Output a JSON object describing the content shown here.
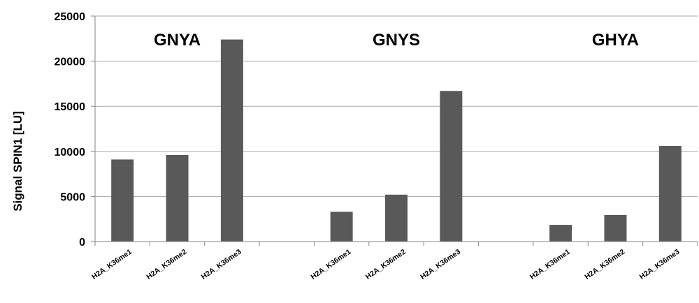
{
  "chart_data": {
    "type": "bar",
    "title": "",
    "xlabel": "",
    "ylabel": "Signal SPIN1 [LU]",
    "ylim": [
      0,
      25000
    ],
    "yticks": [
      "0",
      "5000",
      "10000",
      "15000",
      "20000",
      "25000"
    ],
    "grid": "horizontal",
    "bar_color": "#595959",
    "groups": [
      {
        "label": "GNYA",
        "categories": [
          "H2A_K36me1",
          "H2A_K36me2",
          "H2A_K36me3"
        ],
        "values": [
          9100,
          9600,
          22400
        ]
      },
      {
        "label": "GNYS",
        "categories": [
          "H2A_K36me1",
          "H2A_K36me2",
          "H2A_K36me3"
        ],
        "values": [
          3300,
          5200,
          16700
        ]
      },
      {
        "label": "GHYA",
        "categories": [
          "H2A_K36me1",
          "H2A_K36me2",
          "H2A_K36me3"
        ],
        "values": [
          1850,
          2950,
          10600
        ]
      }
    ]
  }
}
